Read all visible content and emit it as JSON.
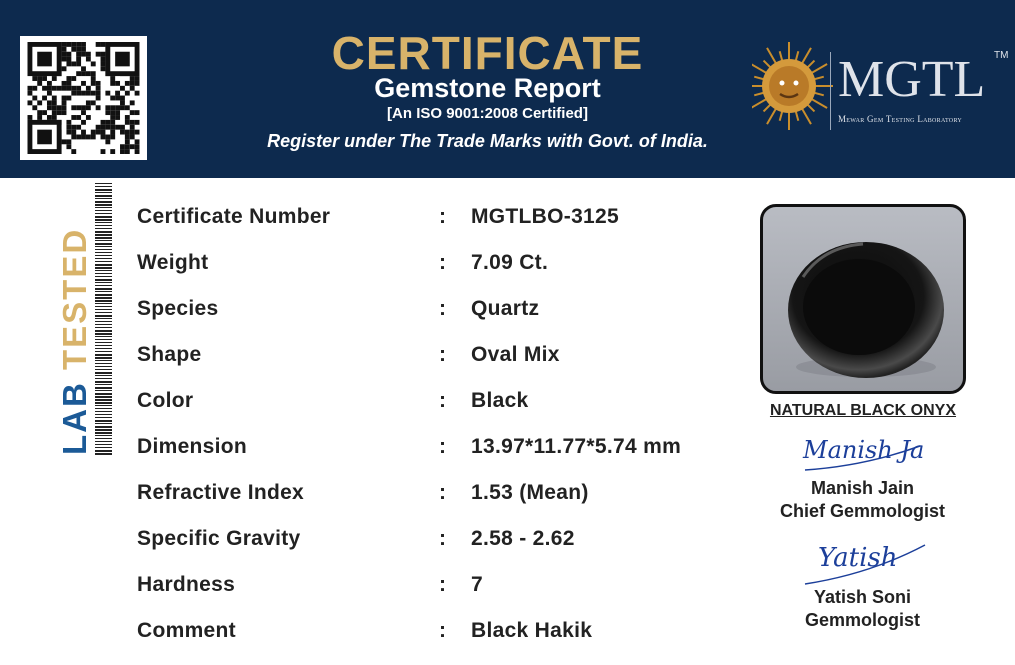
{
  "header": {
    "title": "CERTIFICATE",
    "subtitle": "Gemstone Report",
    "iso": "[An ISO 9001:2008 Certified]",
    "trademark": "Register under The Trade Marks with Govt. of India.",
    "logo": {
      "name": "MGTL",
      "tm": "TM",
      "full_name": "Mewar Gem Testing Laboratory"
    }
  },
  "badge": {
    "lab": "LAB",
    "tested": "TESTED"
  },
  "colors": {
    "navy": "#0d2a4e",
    "gold": "#d8b36a",
    "blue": "#1b5a97"
  },
  "details": [
    {
      "label": "Certificate Number",
      "value": "MGTLBO-3125"
    },
    {
      "label": "Weight",
      "value": "7.09 Ct."
    },
    {
      "label": "Species",
      "value": "Quartz"
    },
    {
      "label": "Shape",
      "value": "Oval Mix"
    },
    {
      "label": "Color",
      "value": "Black"
    },
    {
      "label": "Dimension",
      "value": "13.97*11.77*5.74 mm"
    },
    {
      "label": "Refractive Index",
      "value": "1.53 (Mean)"
    },
    {
      "label": "Specific Gravity",
      "value": "2.58 - 2.62"
    },
    {
      "label": "Hardness",
      "value": "7"
    },
    {
      "label": "Comment",
      "value": "Black Hakik"
    }
  ],
  "separator": ":",
  "gem": {
    "caption": "NATURAL BLACK ONYX"
  },
  "signatories": [
    {
      "signature": "Manish Jain",
      "name": "Manish Jain",
      "title": "Chief Gemmologist"
    },
    {
      "signature": "Yatish",
      "name": "Yatish Soni",
      "title": "Gemmologist"
    }
  ]
}
